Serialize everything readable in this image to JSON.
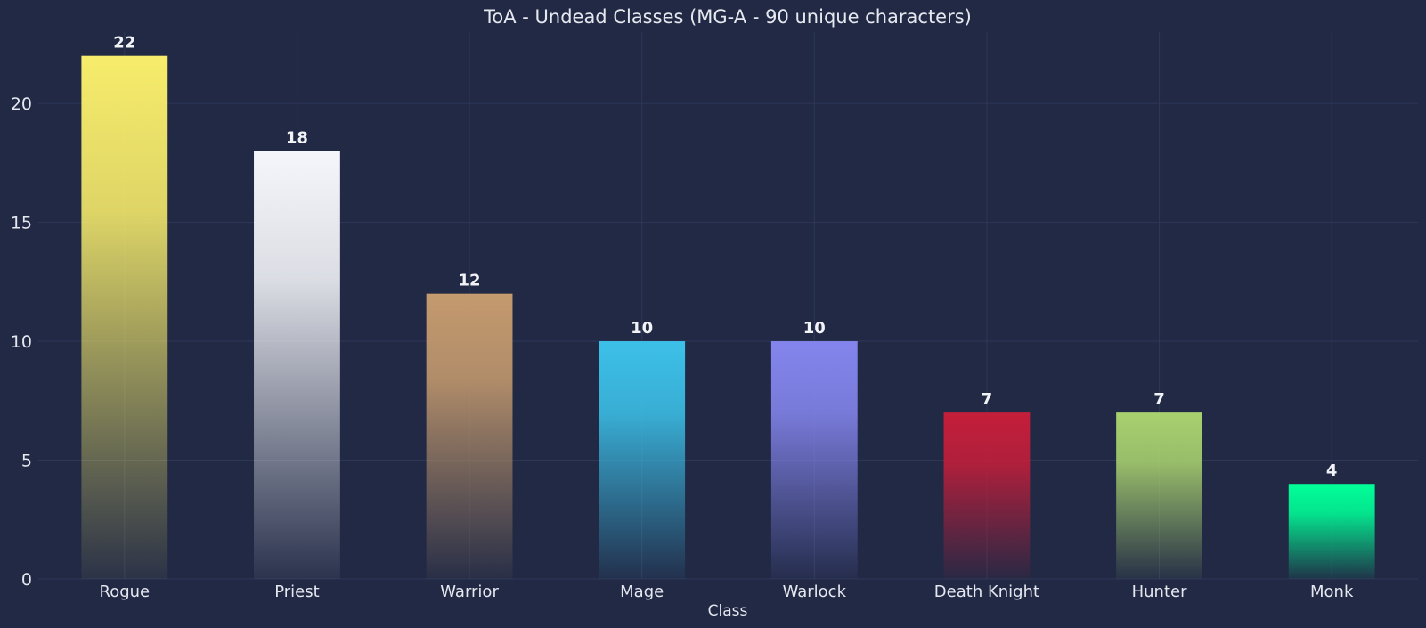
{
  "chart_data": {
    "type": "bar",
    "title": "ToA - Undead Classes (MG-A - 90 unique characters)",
    "xlabel": "Class",
    "ylabel": "",
    "categories": [
      "Rogue",
      "Priest",
      "Warrior",
      "Mage",
      "Warlock",
      "Death Knight",
      "Hunter",
      "Monk"
    ],
    "values": [
      22,
      18,
      12,
      10,
      10,
      7,
      7,
      4
    ],
    "value_labels": [
      "22",
      "18",
      "12",
      "10",
      "10",
      "7",
      "7",
      "4"
    ],
    "ylim": [
      0,
      23
    ],
    "yticks": [
      0,
      5,
      10,
      15,
      20
    ],
    "ytick_labels": [
      "0",
      "5",
      "10",
      "15",
      "20"
    ],
    "grid": true,
    "bar_colors": [
      "#f7ec6b",
      "#f5f6fa",
      "#c49a6e",
      "#3cc0e8",
      "#8485ed",
      "#c41e3a",
      "#a8d16f",
      "#00ff98"
    ]
  }
}
